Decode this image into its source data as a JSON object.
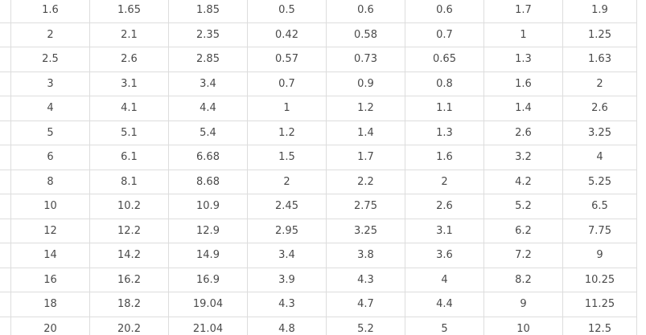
{
  "colors": {
    "background": "#ffffff",
    "grid_border": "#dddddd",
    "cell_text": "#4a4a4a"
  },
  "chart_data": {
    "type": "table",
    "visible_columns": 8,
    "visible_rows": 14,
    "rows": [
      [
        "1.6",
        "1.65",
        "1.85",
        "0.5",
        "0.6",
        "0.6",
        "1.7",
        "1.9"
      ],
      [
        "2",
        "2.1",
        "2.35",
        "0.42",
        "0.58",
        "0.7",
        "1",
        "1.25"
      ],
      [
        "2.5",
        "2.6",
        "2.85",
        "0.57",
        "0.73",
        "0.65",
        "1.3",
        "1.63"
      ],
      [
        "3",
        "3.1",
        "3.4",
        "0.7",
        "0.9",
        "0.8",
        "1.6",
        "2"
      ],
      [
        "4",
        "4.1",
        "4.4",
        "1",
        "1.2",
        "1.1",
        "1.4",
        "2.6"
      ],
      [
        "5",
        "5.1",
        "5.4",
        "1.2",
        "1.4",
        "1.3",
        "2.6",
        "3.25"
      ],
      [
        "6",
        "6.1",
        "6.68",
        "1.5",
        "1.7",
        "1.6",
        "3.2",
        "4"
      ],
      [
        "8",
        "8.1",
        "8.68",
        "2",
        "2.2",
        "2",
        "4.2",
        "5.25"
      ],
      [
        "10",
        "10.2",
        "10.9",
        "2.45",
        "2.75",
        "2.6",
        "5.2",
        "6.5"
      ],
      [
        "12",
        "12.2",
        "12.9",
        "2.95",
        "3.25",
        "3.1",
        "6.2",
        "7.75"
      ],
      [
        "14",
        "14.2",
        "14.9",
        "3.4",
        "3.8",
        "3.6",
        "7.2",
        "9"
      ],
      [
        "16",
        "16.2",
        "16.9",
        "3.9",
        "4.3",
        "4",
        "8.2",
        "10.25"
      ],
      [
        "18",
        "18.2",
        "19.04",
        "4.3",
        "4.7",
        "4.4",
        "9",
        "11.25"
      ],
      [
        "20",
        "20.2",
        "21.04",
        "4.8",
        "5.2",
        "5",
        "10",
        "12.5"
      ]
    ]
  }
}
